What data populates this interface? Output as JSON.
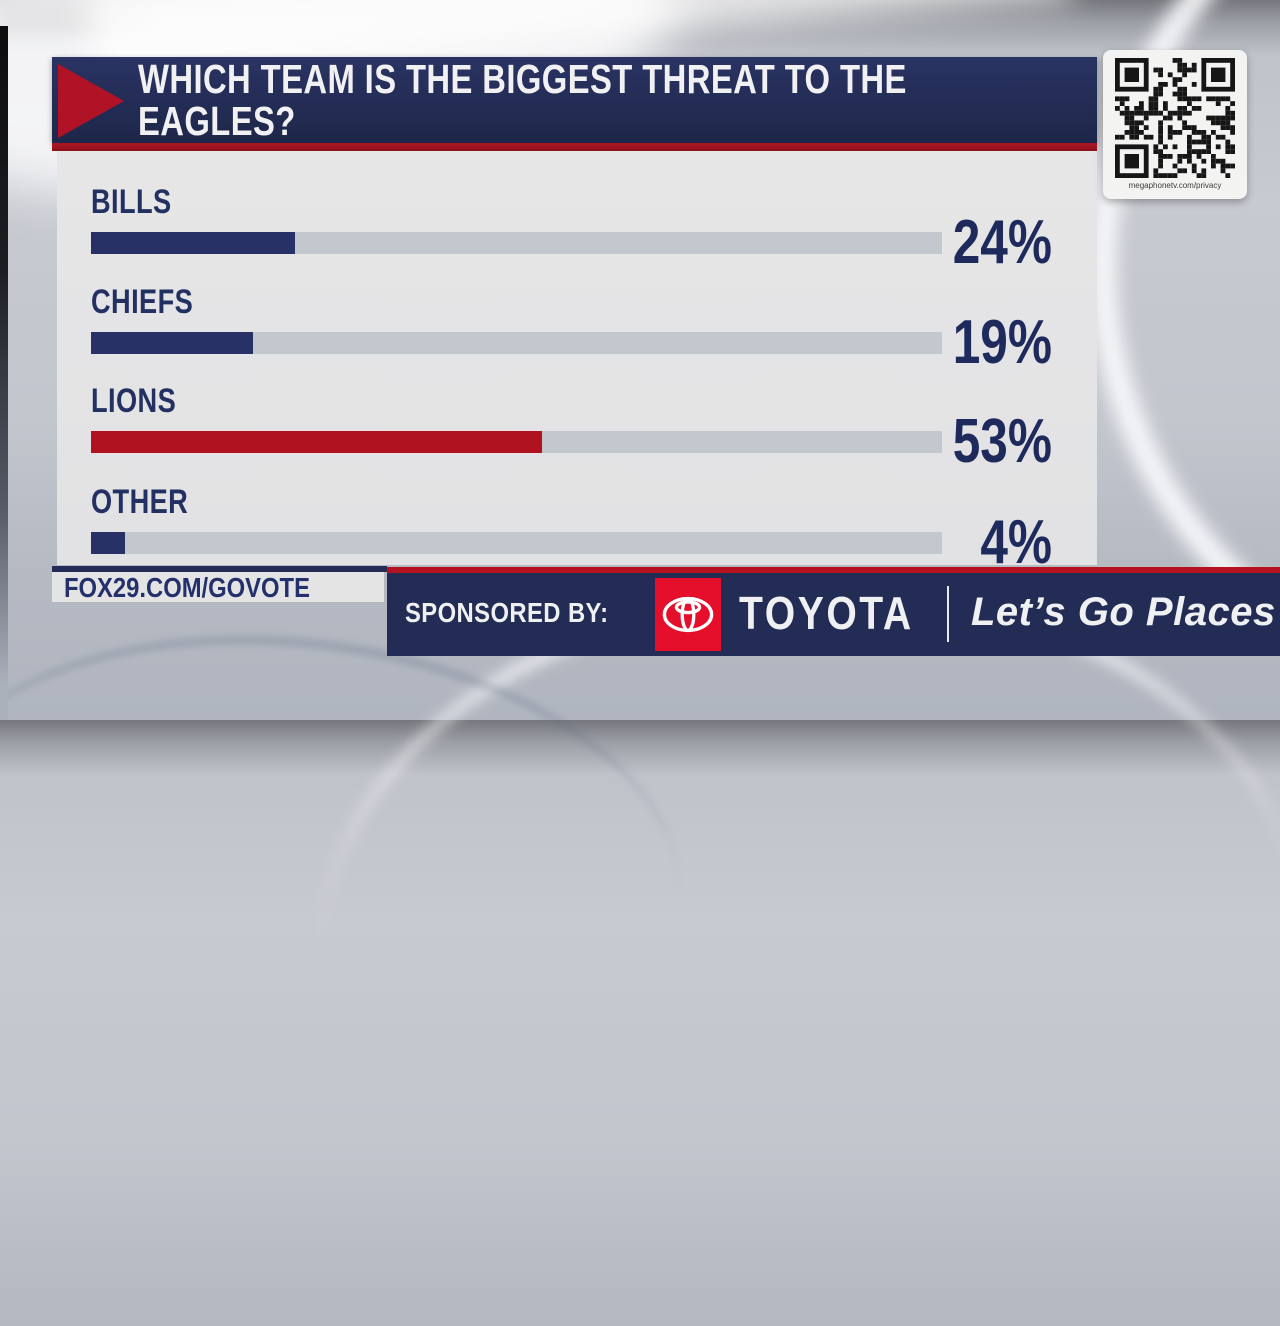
{
  "header": {
    "title": "WHICH TEAM IS THE BIGGEST THREAT TO THE EAGLES?"
  },
  "chart_data": {
    "type": "bar",
    "orientation": "horizontal",
    "title": "WHICH TEAM IS THE BIGGEST THREAT TO THE EAGLES?",
    "categories": [
      "BILLS",
      "CHIEFS",
      "LIONS",
      "OTHER"
    ],
    "values": [
      24,
      19,
      53,
      4
    ],
    "value_labels": [
      "24%",
      "19%",
      "53%",
      "4%"
    ],
    "xlim": [
      0,
      100
    ],
    "bar_colors": [
      "#273166",
      "#273166",
      "#b0121f",
      "#273166"
    ],
    "track_color": "#c3c7ce",
    "legend": false,
    "gridlines": false
  },
  "rows": [
    {
      "label": "BILLS",
      "value_label": "24%"
    },
    {
      "label": "CHIEFS",
      "value_label": "19%"
    },
    {
      "label": "LIONS",
      "value_label": "53%"
    },
    {
      "label": "OTHER",
      "value_label": "4%"
    }
  ],
  "qr": {
    "caption": "megaphonetv.com/privacy"
  },
  "footer": {
    "vote_url": "FOX29.COM/GOVOTE",
    "sponsored_label": "SPONSORED BY:",
    "sponsor_brand": "TOYOTA",
    "sponsor_tagline": "Let’s Go Places"
  },
  "colors": {
    "navy": "#232c54",
    "banner_red": "#b0121f",
    "toyota_red": "#e50f2b",
    "panel": "#e4e4e5",
    "track": "#c3c7ce",
    "percent_text": "#1f2a5c"
  }
}
